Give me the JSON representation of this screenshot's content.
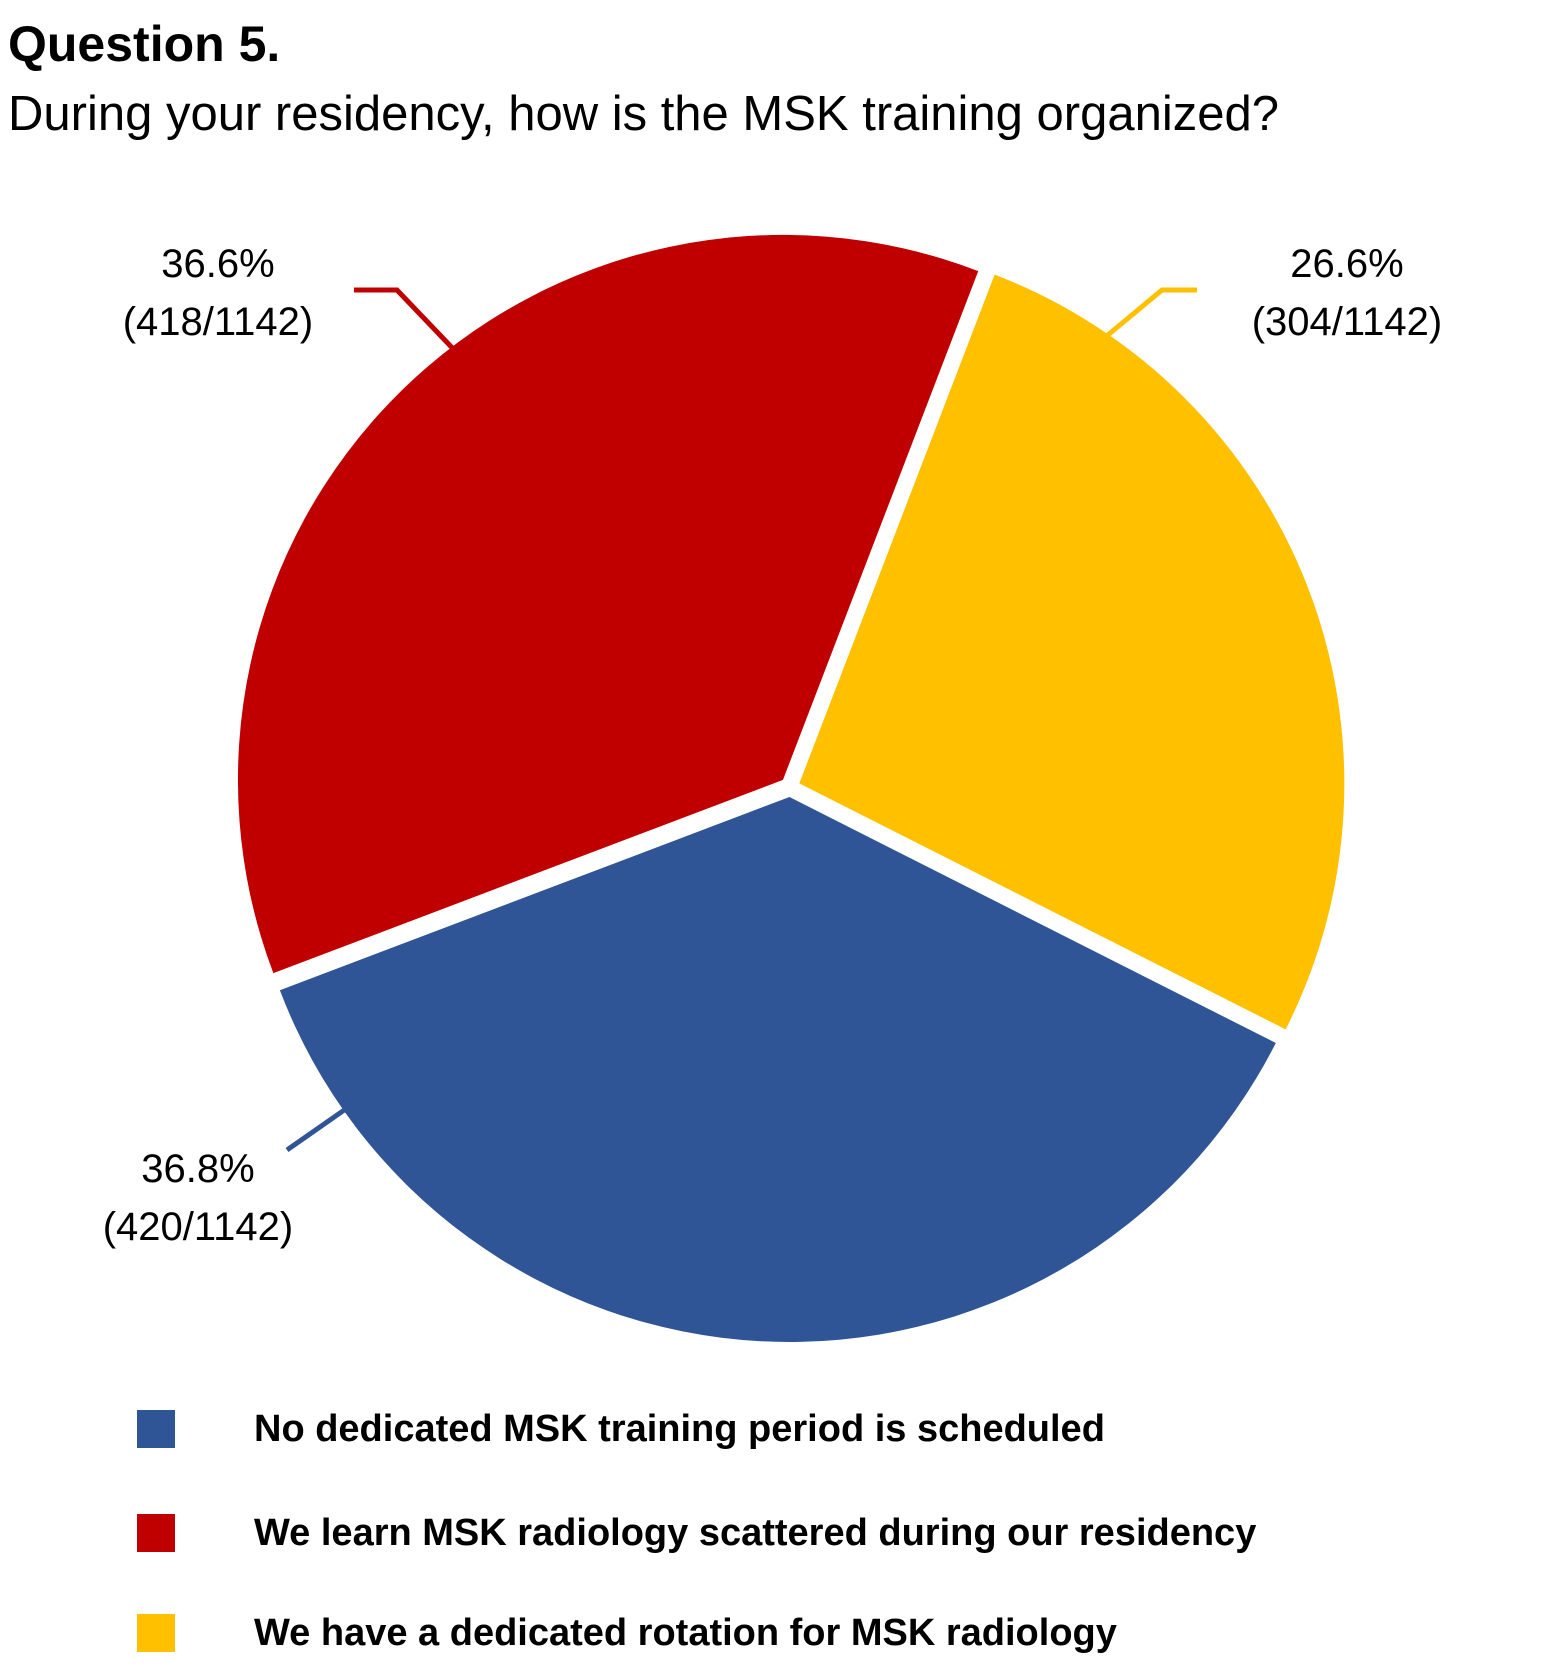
{
  "header": {
    "title": "Question 5.",
    "subtitle": "During your residency, how is the MSK training organized?"
  },
  "chart_data": {
    "type": "pie",
    "total": 1142,
    "slices": [
      {
        "name": "We have a dedicated rotation for MSK radiology",
        "value": 304,
        "percent_label": "26.6%",
        "count_label": "(304/1142)",
        "color": "#FFC000"
      },
      {
        "name": "No dedicated MSK training period is scheduled",
        "value": 420,
        "percent_label": "36.8%",
        "count_label": "(420/1142)",
        "color": "#2F5597"
      },
      {
        "name": "We learn MSK radiology scattered during our residency",
        "value": 418,
        "percent_label": "36.6%",
        "count_label": "(418/1142)",
        "color": "#C00000"
      }
    ],
    "legend": [
      {
        "label": "No dedicated MSK training period is scheduled",
        "color": "#2F5597"
      },
      {
        "label": "We learn MSK radiology scattered during our residency",
        "color": "#C00000"
      },
      {
        "label": "We have a dedicated rotation for MSK radiology",
        "color": "#FFC000"
      }
    ],
    "legend_position": "bottom"
  }
}
